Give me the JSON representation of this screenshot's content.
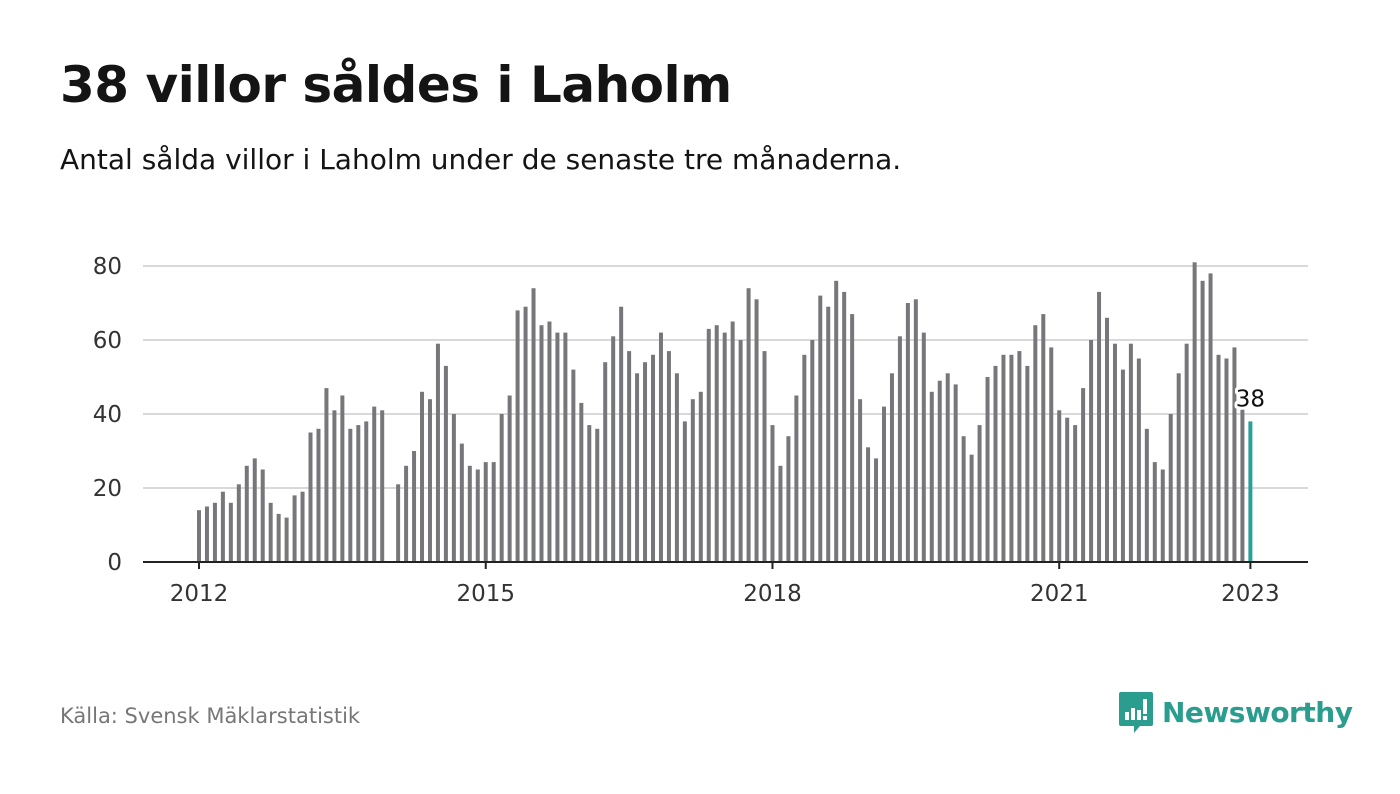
{
  "title": "38 villor såldes i Laholm",
  "subtitle": "Antal sålda villor i Laholm under de senaste tre månaderna.",
  "source": "Källa: Svensk Mäklarstatistik",
  "brand": "Newsworthy",
  "colors": {
    "bar": "#77777b",
    "highlight": "#2aa198",
    "grid": "#d9d9d9",
    "brand": "#2a9d8f"
  },
  "chart_data": {
    "type": "bar",
    "title": "38 villor såldes i Laholm",
    "subtitle": "Antal sålda villor i Laholm under de senaste tre månaderna.",
    "ylim": [
      0,
      80
    ],
    "yticks": [
      0,
      20,
      40,
      60,
      80
    ],
    "xticks": [
      "2012",
      "2015",
      "2018",
      "2021",
      "2023"
    ],
    "grid": true,
    "start": "2012-01",
    "frequency": "monthly",
    "highlight_label": "38",
    "values": [
      14,
      15,
      16,
      19,
      16,
      21,
      26,
      28,
      25,
      16,
      13,
      12,
      18,
      19,
      35,
      36,
      47,
      41,
      45,
      36,
      37,
      38,
      42,
      41,
      null,
      21,
      26,
      30,
      46,
      44,
      59,
      53,
      40,
      32,
      26,
      25,
      27,
      27,
      40,
      45,
      68,
      69,
      74,
      64,
      65,
      62,
      62,
      52,
      43,
      37,
      36,
      54,
      61,
      69,
      57,
      51,
      54,
      56,
      62,
      57,
      51,
      38,
      44,
      46,
      63,
      64,
      62,
      65,
      60,
      74,
      71,
      57,
      37,
      26,
      34,
      45,
      56,
      60,
      72,
      69,
      76,
      73,
      67,
      44,
      31,
      28,
      42,
      51,
      61,
      70,
      71,
      62,
      46,
      49,
      51,
      48,
      34,
      29,
      37,
      50,
      53,
      56,
      56,
      57,
      53,
      64,
      67,
      58,
      41,
      39,
      37,
      47,
      60,
      73,
      66,
      59,
      52,
      59,
      55,
      36,
      27,
      25,
      40,
      51,
      59,
      81,
      76,
      78,
      56,
      55,
      58,
      43,
      38
    ]
  }
}
